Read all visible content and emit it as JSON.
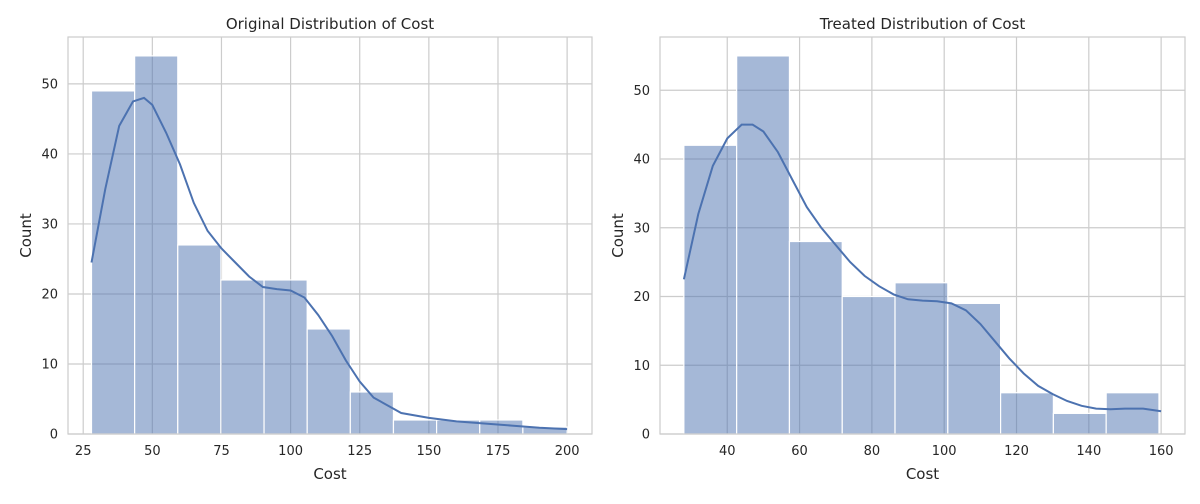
{
  "chart_data": [
    {
      "type": "bar",
      "title": "Original Distribution of Cost",
      "xlabel": "Cost",
      "ylabel": "Count",
      "xlim": [
        19.5,
        209.0
      ],
      "ylim": [
        0,
        56.7
      ],
      "xticks": [
        25,
        50,
        75,
        100,
        125,
        150,
        175,
        200
      ],
      "yticks": [
        0,
        10,
        20,
        30,
        40,
        50
      ],
      "grid": true,
      "bins": [
        {
          "x0": 28.0,
          "x1": 43.6,
          "count": 49
        },
        {
          "x0": 43.6,
          "x1": 59.2,
          "count": 54
        },
        {
          "x0": 59.2,
          "x1": 74.8,
          "count": 27
        },
        {
          "x0": 74.8,
          "x1": 90.4,
          "count": 22
        },
        {
          "x0": 90.4,
          "x1": 106.0,
          "count": 22
        },
        {
          "x0": 106.0,
          "x1": 121.6,
          "count": 15
        },
        {
          "x0": 121.6,
          "x1": 137.2,
          "count": 6
        },
        {
          "x0": 137.2,
          "x1": 152.8,
          "count": 2
        },
        {
          "x0": 152.8,
          "x1": 168.4,
          "count": 2
        },
        {
          "x0": 168.4,
          "x1": 184.0,
          "count": 2
        },
        {
          "x0": 184.0,
          "x1": 200.0,
          "count": 1
        }
      ],
      "kde": {
        "x": [
          28,
          33,
          38,
          43,
          47,
          50,
          55,
          60,
          65,
          70,
          75,
          80,
          85,
          90,
          95,
          100,
          105,
          110,
          115,
          120,
          125,
          130,
          140,
          150,
          160,
          170,
          180,
          190,
          200
        ],
        "y": [
          24.5,
          35,
          44,
          47.5,
          48,
          47,
          43,
          38.5,
          33,
          29,
          26.5,
          24.5,
          22.5,
          21,
          20.7,
          20.5,
          19.5,
          17,
          14,
          10.5,
          7.5,
          5.2,
          3,
          2.3,
          1.8,
          1.5,
          1.2,
          0.9,
          0.7
        ]
      }
    },
    {
      "type": "bar",
      "title": "Treated Distribution of Cost",
      "xlabel": "Cost",
      "ylabel": "Count",
      "xlim": [
        21.4,
        166.6
      ],
      "ylim": [
        0,
        57.75
      ],
      "xticks": [
        40,
        60,
        80,
        100,
        120,
        140,
        160
      ],
      "yticks": [
        0,
        10,
        20,
        30,
        40,
        50
      ],
      "grid": true,
      "bins": [
        {
          "x0": 28.0,
          "x1": 42.6,
          "count": 42
        },
        {
          "x0": 42.6,
          "x1": 57.2,
          "count": 55
        },
        {
          "x0": 57.2,
          "x1": 71.8,
          "count": 28
        },
        {
          "x0": 71.8,
          "x1": 86.4,
          "count": 20
        },
        {
          "x0": 86.4,
          "x1": 101.0,
          "count": 22
        },
        {
          "x0": 101.0,
          "x1": 115.6,
          "count": 19
        },
        {
          "x0": 115.6,
          "x1": 130.2,
          "count": 6
        },
        {
          "x0": 130.2,
          "x1": 144.8,
          "count": 3
        },
        {
          "x0": 144.8,
          "x1": 159.4,
          "count": 6
        }
      ],
      "kde": {
        "x": [
          28,
          32,
          36,
          40,
          44,
          47,
          50,
          54,
          58,
          62,
          66,
          70,
          74,
          78,
          82,
          86,
          90,
          94,
          98,
          102,
          106,
          110,
          114,
          118,
          122,
          126,
          130,
          134,
          138,
          142,
          146,
          150,
          155,
          160
        ],
        "y": [
          22.5,
          32,
          39,
          43,
          45,
          45,
          44,
          41,
          37,
          33,
          30,
          27.5,
          25,
          23,
          21.5,
          20.3,
          19.6,
          19.4,
          19.3,
          19,
          18,
          16,
          13.5,
          11,
          8.8,
          7,
          5.8,
          4.8,
          4.1,
          3.7,
          3.6,
          3.7,
          3.7,
          3.3
        ]
      }
    }
  ]
}
